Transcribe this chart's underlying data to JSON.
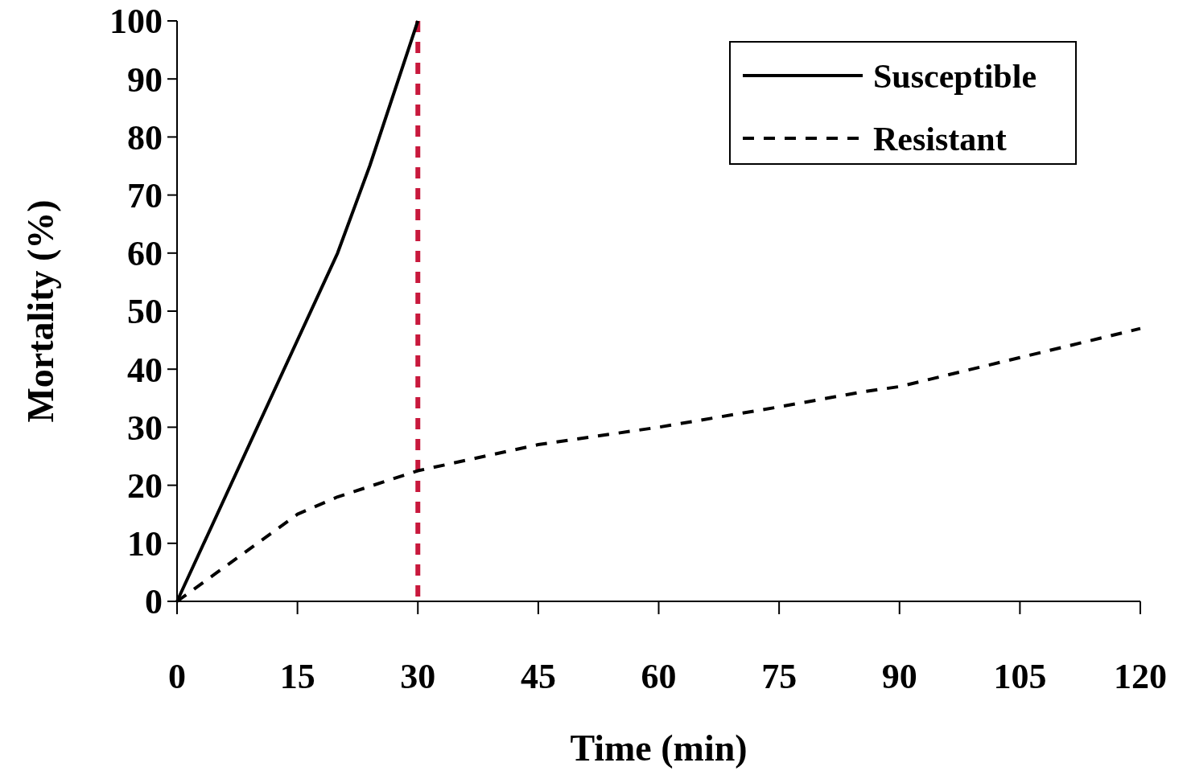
{
  "chart_data": {
    "type": "line",
    "xlabel": "Time (min)",
    "ylabel": "Mortality (%)",
    "xlim": [
      0,
      120
    ],
    "xticks": [
      0,
      15,
      30,
      45,
      60,
      75,
      90,
      105,
      120
    ],
    "ylim": [
      0,
      100
    ],
    "yticks": [
      0,
      10,
      20,
      30,
      40,
      50,
      60,
      70,
      80,
      90,
      100
    ],
    "grid": false,
    "legend": "top right",
    "marker": "none",
    "series": [
      {
        "name": "Susceptible",
        "color": "#000000",
        "line_style": "solid",
        "x": [
          0,
          10,
          20,
          24,
          30
        ],
        "values": [
          0,
          30,
          60,
          75,
          100
        ]
      },
      {
        "name": "Resistant",
        "color": "#000000",
        "line_style": "dashed",
        "x": [
          0,
          5,
          10,
          15,
          20,
          30,
          45,
          55,
          60,
          75,
          85,
          90,
          105,
          120
        ],
        "values": [
          0,
          5,
          10,
          15,
          18,
          22.5,
          27,
          29,
          30,
          33.5,
          36,
          37,
          42,
          47
        ]
      }
    ],
    "ref_lines": [
      {
        "axis": "x",
        "value": 30,
        "color": "#c8183c",
        "line_style": "dashed"
      }
    ]
  }
}
